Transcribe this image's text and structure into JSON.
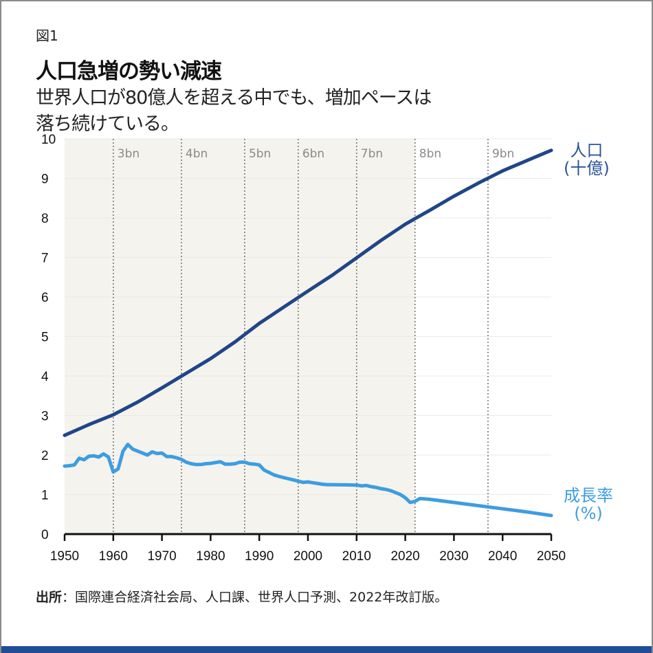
{
  "figure_label": "図1",
  "title": "人口急増の勢い減速",
  "subtitle_lines": [
    "世界人口が80億人を超える中でも、増加ペースは",
    "落ち続けている。"
  ],
  "source": {
    "label": "出所",
    "text": "：国際連合経済社会局、人口課、世界人口予測、2022年改訂版。"
  },
  "colors": {
    "population": "#1f4688",
    "growth": "#3d9de0",
    "shade": "#f5f3ee",
    "bottom_bar": "#1f4e96"
  },
  "chart_data": {
    "type": "line",
    "title": "人口急増の勢い減速",
    "xlim": [
      1950,
      2050
    ],
    "ylim": [
      0,
      10
    ],
    "x_ticks": [
      1950,
      1960,
      1970,
      1980,
      1990,
      2000,
      2010,
      2020,
      2030,
      2040,
      2050
    ],
    "y_ticks": [
      0,
      1,
      2,
      3,
      4,
      5,
      6,
      7,
      8,
      9,
      10
    ],
    "grid": "horizontal",
    "shaded_range": [
      1950,
      2022
    ],
    "milestones": [
      {
        "year": 1960,
        "label": "3bn"
      },
      {
        "year": 1974,
        "label": "4bn"
      },
      {
        "year": 1987,
        "label": "5bn"
      },
      {
        "year": 1998,
        "label": "6bn"
      },
      {
        "year": 2010,
        "label": "7bn"
      },
      {
        "year": 2022,
        "label": "8bn"
      },
      {
        "year": 2037,
        "label": "9bn"
      }
    ],
    "series": [
      {
        "name": "人口\n(十億)",
        "label_lines": [
          "人口",
          "(十億)"
        ],
        "x": [
          1950,
          1955,
          1960,
          1965,
          1970,
          1975,
          1980,
          1985,
          1990,
          1995,
          2000,
          2005,
          2010,
          2015,
          2020,
          2022,
          2025,
          2030,
          2035,
          2040,
          2045,
          2050
        ],
        "values": [
          2.5,
          2.77,
          3.02,
          3.34,
          3.7,
          4.07,
          4.44,
          4.86,
          5.33,
          5.74,
          6.15,
          6.55,
          6.99,
          7.43,
          7.84,
          7.98,
          8.19,
          8.55,
          8.88,
          9.19,
          9.45,
          9.71
        ]
      },
      {
        "name": "成長率\n(%)",
        "label_lines": [
          "成長率",
          "(%)"
        ],
        "x": [
          1950,
          1951,
          1952,
          1953,
          1954,
          1955,
          1956,
          1957,
          1958,
          1959,
          1960,
          1961,
          1962,
          1963,
          1964,
          1965,
          1966,
          1967,
          1968,
          1969,
          1970,
          1971,
          1972,
          1973,
          1974,
          1975,
          1976,
          1977,
          1978,
          1979,
          1980,
          1981,
          1982,
          1983,
          1984,
          1985,
          1986,
          1987,
          1988,
          1989,
          1990,
          1991,
          1992,
          1993,
          1994,
          1995,
          1996,
          1997,
          1998,
          1999,
          2000,
          2001,
          2002,
          2003,
          2004,
          2005,
          2010,
          2011,
          2012,
          2013,
          2014,
          2015,
          2016,
          2017,
          2018,
          2019,
          2020,
          2021,
          2022,
          2023,
          2025,
          2030,
          2035,
          2040,
          2045,
          2050
        ],
        "values": [
          1.72,
          1.73,
          1.75,
          1.92,
          1.88,
          1.97,
          1.98,
          1.95,
          2.03,
          1.95,
          1.57,
          1.65,
          2.1,
          2.27,
          2.15,
          2.1,
          2.05,
          2.0,
          2.08,
          2.04,
          2.05,
          1.96,
          1.96,
          1.93,
          1.89,
          1.82,
          1.78,
          1.76,
          1.76,
          1.78,
          1.79,
          1.81,
          1.83,
          1.77,
          1.77,
          1.78,
          1.82,
          1.82,
          1.78,
          1.77,
          1.75,
          1.62,
          1.56,
          1.5,
          1.46,
          1.43,
          1.4,
          1.37,
          1.34,
          1.31,
          1.32,
          1.3,
          1.28,
          1.26,
          1.25,
          1.25,
          1.24,
          1.22,
          1.23,
          1.2,
          1.18,
          1.15,
          1.13,
          1.1,
          1.05,
          1.0,
          0.92,
          0.8,
          0.83,
          0.9,
          0.88,
          0.8,
          0.72,
          0.64,
          0.56,
          0.47
        ]
      }
    ]
  }
}
